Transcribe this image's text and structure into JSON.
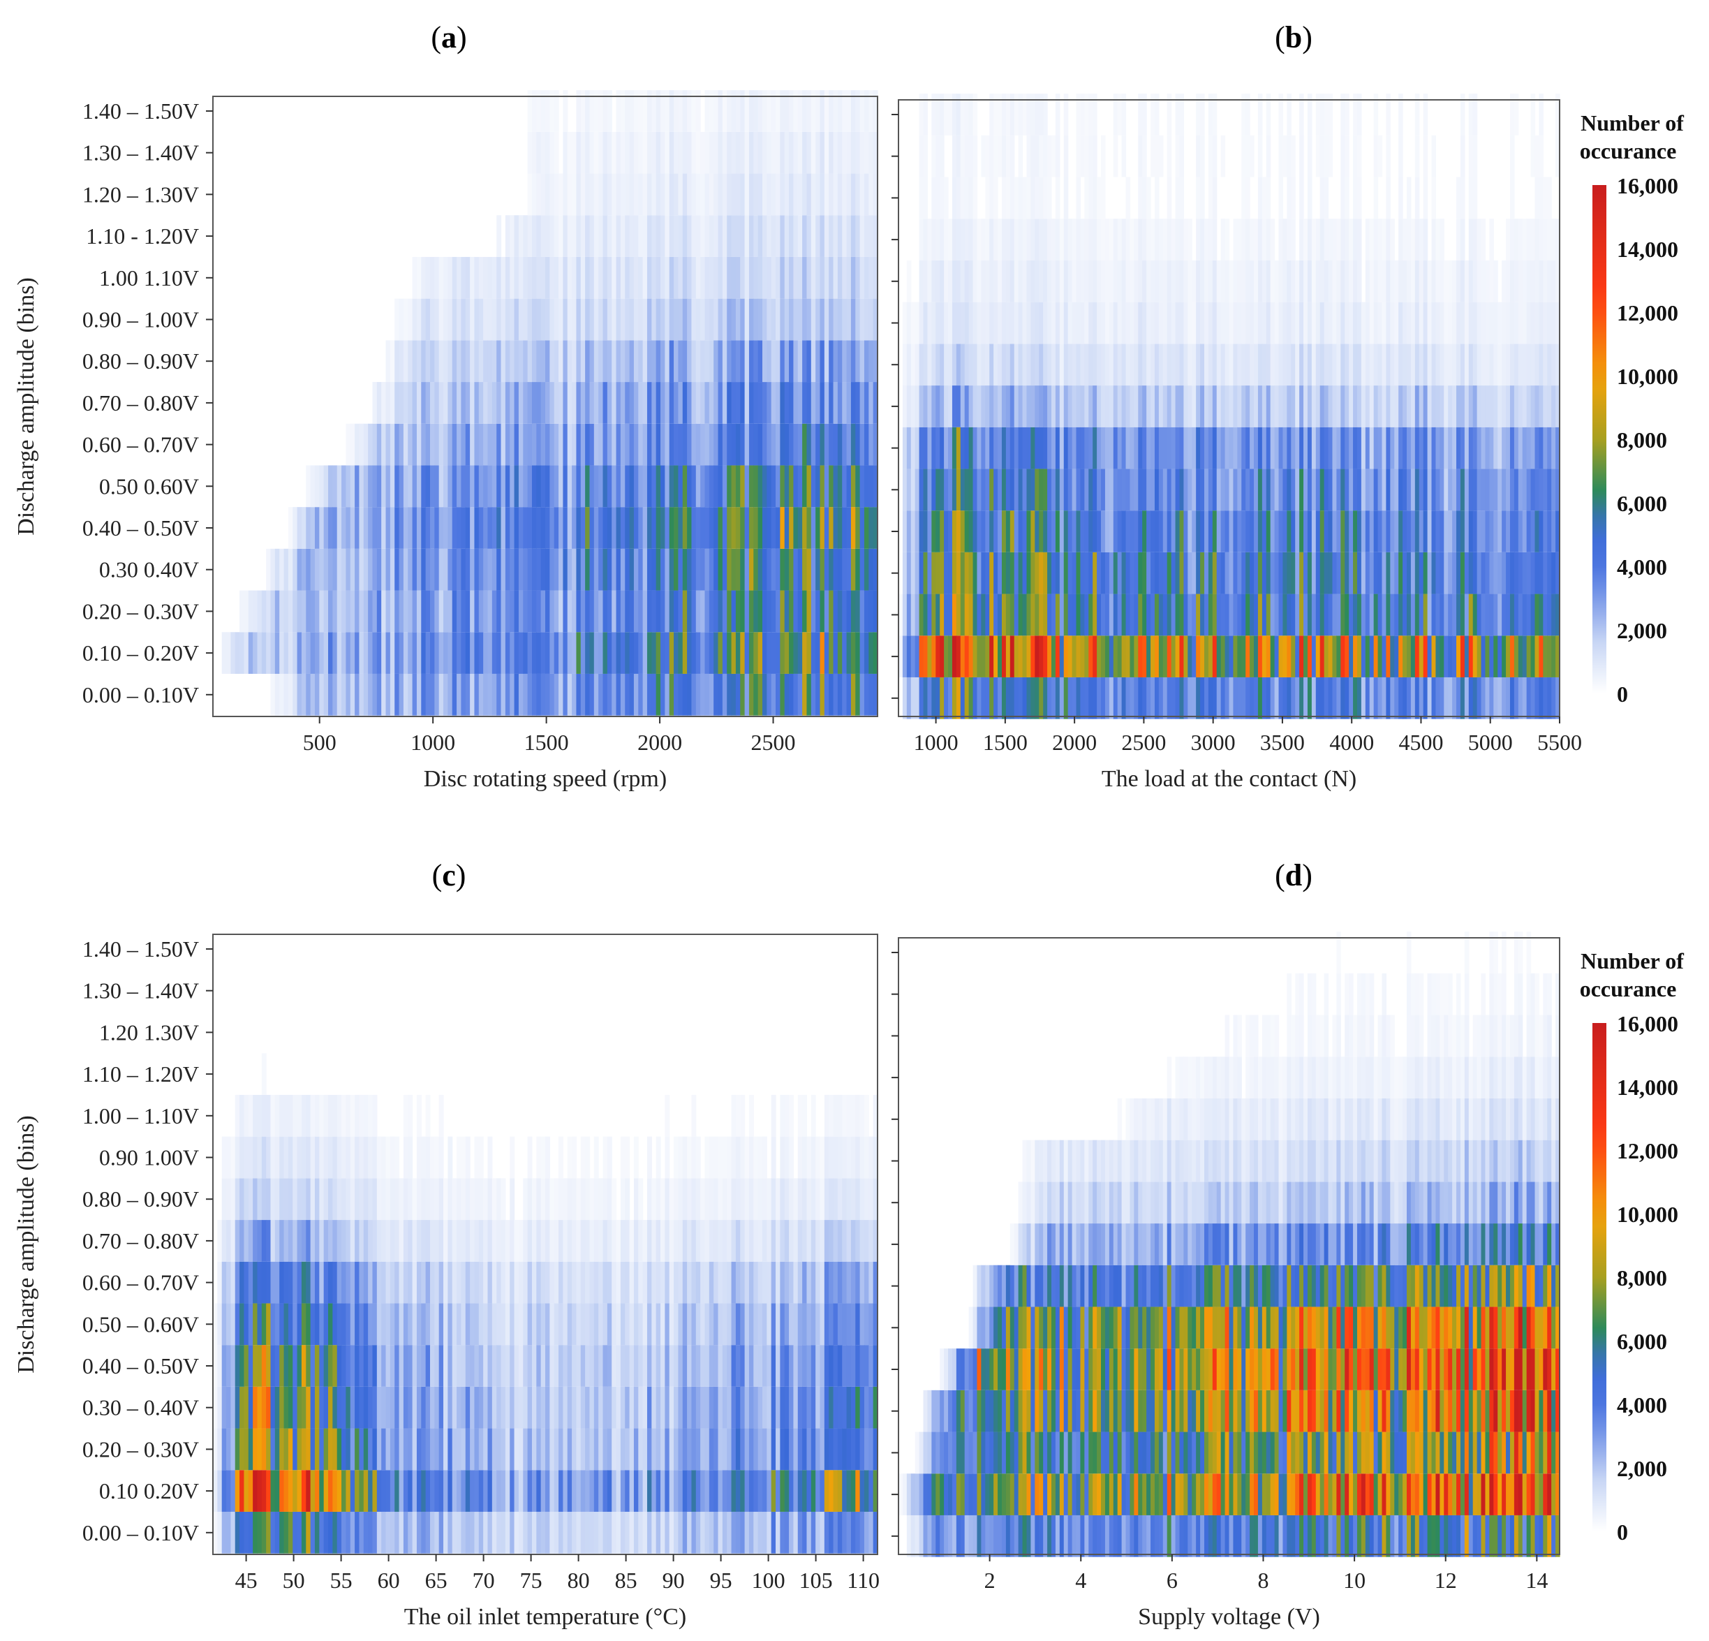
{
  "figure": {
    "y_bins": [
      "0.00 – 0.10V",
      "0.10 – 0.20V",
      "0.20 – 0.30V",
      "0.30 – 0.40V",
      "0.40 – 0.50V",
      "0.50 – 0.60V",
      "0.60 – 0.70V",
      "0.70 – 0.80V",
      "0.80 – 0.90V",
      "0.90 – 1.00V",
      "1.00 – 1.10V",
      "1.10 – 1.20V",
      "1.20 – 1.30V",
      "1.30 – 1.40V",
      "1.40 – 1.50V"
    ],
    "y_bins_display_a": [
      "0.00 – 0.10V",
      "0.10 – 0.20V",
      "0.20 – 0.30V",
      "0.30  0.40V",
      "0.40 – 0.50V",
      "0.50  0.60V",
      "0.60 – 0.70V",
      "0.70 – 0.80V",
      "0.80 – 0.90V",
      "0.90 – 1.00V",
      "1.00  1.10V",
      "1.10 - 1.20V",
      "1.20 – 1.30V",
      "1.30 – 1.40V",
      "1.40 – 1.50V"
    ],
    "y_bins_display_c": [
      "0.00 – 0.10V",
      "0.10  0.20V",
      "0.20 – 0.30V",
      "0.30 – 0.40V",
      "0.40 – 0.50V",
      "0.50 – 0.60V",
      "0.60 – 0.70V",
      "0.70 – 0.80V",
      "0.80 – 0.90V",
      "0.90  1.00V",
      "1.00 – 1.10V",
      "1.10 – 1.20V",
      "1.20  1.30V",
      "1.30 – 1.40V",
      "1.40 – 1.50V"
    ],
    "ylabel": "Discharge amplitude (bins)",
    "legend": {
      "title_line1": "Number of",
      "title_line2": "occurance",
      "ticks": [
        "0",
        "2,000",
        "4,000",
        "6,000",
        "8,000",
        "10,000",
        "12,000",
        "14,000",
        "16,000"
      ],
      "tick_values": [
        0,
        2000,
        4000,
        6000,
        8000,
        10000,
        12000,
        14000,
        16000
      ],
      "colors": [
        "#ffffff",
        "#8fa8ee",
        "#3a6ad8",
        "#2e8a4e",
        "#a8a020",
        "#f2a20a",
        "#ff3c14",
        "#c81e1e"
      ]
    }
  },
  "chart_data": [
    {
      "type": "heatmap",
      "panel": "(a)",
      "xlabel": "Disc rotating speed (rpm)",
      "x_range": [
        30,
        2960
      ],
      "x_ticks": [
        500,
        1000,
        1500,
        2000,
        2500
      ],
      "x_tick_labels": [
        "500",
        "1000",
        "1500",
        "2000",
        "2500"
      ],
      "n_columns": 150,
      "row_intensity_profile": [
        0.33,
        0.4,
        0.34,
        0.36,
        0.4,
        0.35,
        0.27,
        0.22,
        0.18,
        0.12,
        0.09,
        0.07,
        0.05,
        0.04,
        0.03
      ],
      "x_onset_per_bin": [
        260,
        40,
        120,
        230,
        330,
        430,
        600,
        700,
        750,
        800,
        850,
        1200,
        1350,
        1300,
        1300
      ],
      "column_trend": [
        [
          30,
          0.25
        ],
        [
          800,
          0.45
        ],
        [
          1500,
          0.62
        ],
        [
          2000,
          0.85
        ],
        [
          2500,
          1.0
        ],
        [
          2960,
          0.95
        ]
      ],
      "max_count": 12000
    },
    {
      "type": "heatmap",
      "panel": "(b)",
      "xlabel": "The load at the contact (N)",
      "x_range": [
        730,
        5500
      ],
      "x_ticks": [
        1000,
        1500,
        2000,
        2500,
        3000,
        3500,
        4000,
        4500,
        5000,
        5500
      ],
      "x_tick_labels": [
        "1000",
        "1500",
        "2000",
        "2500",
        "3000",
        "3500",
        "4000",
        "4500",
        "5000",
        "5500"
      ],
      "n_columns": 160,
      "row_intensity_profile": [
        0.32,
        0.68,
        0.4,
        0.38,
        0.34,
        0.3,
        0.26,
        0.14,
        0.08,
        0.05,
        0.04,
        0.03,
        0.02,
        0.02,
        0.02
      ],
      "x_onset_per_bin": [
        730,
        730,
        730,
        730,
        730,
        730,
        730,
        730,
        730,
        730,
        730,
        730,
        730,
        730,
        730
      ],
      "column_trend": [
        [
          730,
          1.3
        ],
        [
          900,
          1.4
        ],
        [
          1300,
          1.05
        ],
        [
          1900,
          0.85
        ],
        [
          2500,
          0.8
        ],
        [
          4000,
          0.78
        ],
        [
          5500,
          0.72
        ]
      ],
      "max_count": 15000
    },
    {
      "type": "heatmap",
      "panel": "(c)",
      "xlabel": "The oil inlet temperature (°C)",
      "x_range": [
        41.5,
        111.5
      ],
      "x_ticks": [
        45,
        50,
        55,
        60,
        65,
        70,
        75,
        80,
        85,
        90,
        95,
        100,
        105,
        110
      ],
      "x_tick_labels": [
        "45",
        "50",
        "55",
        "60",
        "65",
        "70",
        "75",
        "80",
        "85",
        "90",
        "95",
        "100",
        "105",
        "110"
      ],
      "n_columns": 150,
      "row_intensity_profile": [
        0.32,
        0.62,
        0.42,
        0.4,
        0.36,
        0.3,
        0.24,
        0.14,
        0.08,
        0.05,
        0.03,
        0.01,
        0.005,
        0.005,
        0.005
      ],
      "x_onset_per_bin": [
        41.5,
        41.5,
        41.5,
        41.5,
        41.5,
        41.5,
        41.5,
        41.5,
        41.5,
        41.5,
        41.5,
        41.5,
        41.5,
        41.5,
        41.5
      ],
      "column_trend": [
        [
          41.5,
          1.2
        ],
        [
          50,
          1.15
        ],
        [
          55,
          0.75
        ],
        [
          60,
          0.45
        ],
        [
          70,
          0.32
        ],
        [
          80,
          0.28
        ],
        [
          90,
          0.35
        ],
        [
          100,
          0.55
        ],
        [
          111.5,
          0.65
        ]
      ],
      "max_count": 13000
    },
    {
      "type": "heatmap",
      "panel": "(d)",
      "xlabel": "Supply voltage (V)",
      "x_range": [
        0,
        14.5
      ],
      "x_ticks": [
        2,
        4,
        6,
        8,
        10,
        12,
        14
      ],
      "x_tick_labels": [
        "2",
        "4",
        "6",
        "8",
        "10",
        "12",
        "14"
      ],
      "n_columns": 160,
      "row_intensity_profile": [
        0.32,
        0.62,
        0.46,
        0.58,
        0.66,
        0.56,
        0.38,
        0.22,
        0.12,
        0.08,
        0.05,
        0.03,
        0.02,
        0.015,
        0.01
      ],
      "x_onset_per_bin": [
        0,
        0,
        0.3,
        0.5,
        0.9,
        1.5,
        1.5,
        2.4,
        2.5,
        2.5,
        4.5,
        5.5,
        6.4,
        7.5,
        7.5
      ],
      "column_trend": [
        [
          0,
          0.55
        ],
        [
          2,
          0.7
        ],
        [
          6,
          0.8
        ],
        [
          10,
          0.95
        ],
        [
          12,
          1.15
        ],
        [
          14,
          1.2
        ],
        [
          14.5,
          1.1
        ]
      ],
      "max_count": 15000
    }
  ]
}
